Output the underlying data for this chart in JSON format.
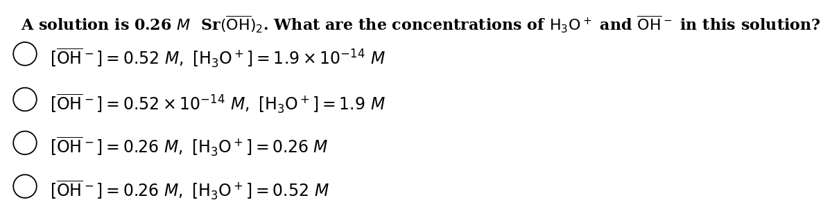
{
  "background_color": "#ffffff",
  "figsize": [
    12.0,
    2.99
  ],
  "dpi": 100,
  "question": "A solution is 0.26 $M$  Sr(\\overline{OH})$_2$. What are the concentrations of H$_3$O$^+$ and $\\overline{\\text{OH}}^-$ in this solution?",
  "options": [
    "$[\\overline{\\mathrm{OH}}^-] = 0.52\\ M,\\ [\\mathrm{H_3O^+}] = 1.9 \\times 10^{-14}\\ M$",
    "$[\\overline{\\mathrm{OH}}^-] = 0.52 \\times 10^{-14}\\ M,\\ [\\mathrm{H_3O^+}] = 1.9\\ M$",
    "$[\\overline{\\mathrm{OH}}^-] = 0.26\\ M,\\ [\\mathrm{H_3O^+}] = 0.26\\ M$",
    "$[\\overline{\\mathrm{OH}}^-] = 0.26\\ M,\\ [\\mathrm{H_3O^+}] = 0.52\\ M$"
  ],
  "question_fontsize": 16,
  "option_fontsize": 17,
  "text_color": "#000000",
  "circle_color": "#000000",
  "circle_linewidth": 1.3
}
